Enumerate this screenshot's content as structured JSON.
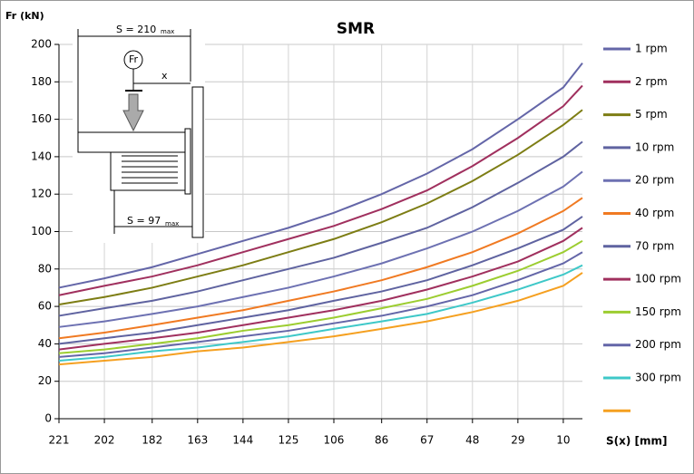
{
  "chart_data": {
    "type": "line",
    "title": "SMR",
    "y_label": "Fr (kN)",
    "x_label": "S(x) [mm]",
    "x": [
      221,
      202,
      182,
      163,
      144,
      125,
      106,
      86,
      67,
      48,
      29,
      10,
      2
    ],
    "xlim": [
      221,
      2
    ],
    "xticks": [
      221,
      202,
      182,
      163,
      144,
      125,
      106,
      86,
      67,
      48,
      29,
      10
    ],
    "ylim": [
      0,
      200
    ],
    "yticks": [
      0,
      20,
      40,
      60,
      80,
      100,
      120,
      140,
      160,
      180,
      200
    ],
    "grid": true,
    "legend": "right",
    "annotations": [
      "S = 210",
      "max",
      "Fr",
      "x",
      "S = 97",
      "max"
    ],
    "series": [
      {
        "name": "1 rpm",
        "color": "#6466a8",
        "values": [
          70,
          75,
          81,
          88,
          95,
          102,
          110,
          120,
          131,
          144,
          160,
          177,
          190
        ]
      },
      {
        "name": "2 rpm",
        "color": "#a0305e",
        "values": [
          66,
          71,
          76,
          82,
          89,
          96,
          103,
          112,
          122,
          135,
          150,
          167,
          178
        ]
      },
      {
        "name": "5 rpm",
        "color": "#7d7d14",
        "values": [
          61,
          65,
          70,
          76,
          82,
          89,
          96,
          105,
          115,
          127,
          141,
          157,
          165
        ]
      },
      {
        "name": "10 rpm",
        "color": "#5f63a0",
        "values": [
          55,
          59,
          63,
          68,
          74,
          80,
          86,
          94,
          102,
          113,
          126,
          140,
          148
        ]
      },
      {
        "name": "20 rpm",
        "color": "#6d71b2",
        "values": [
          49,
          52,
          56,
          60,
          65,
          70,
          76,
          83,
          91,
          100,
          111,
          124,
          132
        ]
      },
      {
        "name": "40 rpm",
        "color": "#f07a22",
        "values": [
          43,
          46,
          50,
          54,
          58,
          63,
          68,
          74,
          81,
          89,
          99,
          111,
          118
        ]
      },
      {
        "name": "70 rpm",
        "color": "#5f63a0",
        "values": [
          40,
          43,
          46,
          50,
          54,
          58,
          63,
          68,
          74,
          82,
          91,
          101,
          108
        ]
      },
      {
        "name": "100 rpm",
        "color": "#a0305e",
        "values": [
          37,
          40,
          43,
          46,
          50,
          54,
          58,
          63,
          69,
          76,
          84,
          95,
          102
        ]
      },
      {
        "name": "150 rpm",
        "color": "#9ccd30",
        "values": [
          35,
          37,
          40,
          43,
          47,
          50,
          54,
          59,
          64,
          71,
          79,
          89,
          95
        ]
      },
      {
        "name": "200 rpm",
        "color": "#6466a8",
        "values": [
          33,
          35,
          38,
          41,
          44,
          47,
          51,
          55,
          60,
          66,
          74,
          83,
          89
        ]
      },
      {
        "name": "300 rpm",
        "color": "#3ec8c8",
        "values": [
          31,
          33,
          36,
          38,
          41,
          44,
          48,
          52,
          56,
          62,
          69,
          77,
          82
        ]
      },
      {
        "color": "#f5a020",
        "values": [
          29,
          31,
          33,
          36,
          38,
          41,
          44,
          48,
          52,
          57,
          63,
          71,
          78
        ]
      }
    ]
  }
}
